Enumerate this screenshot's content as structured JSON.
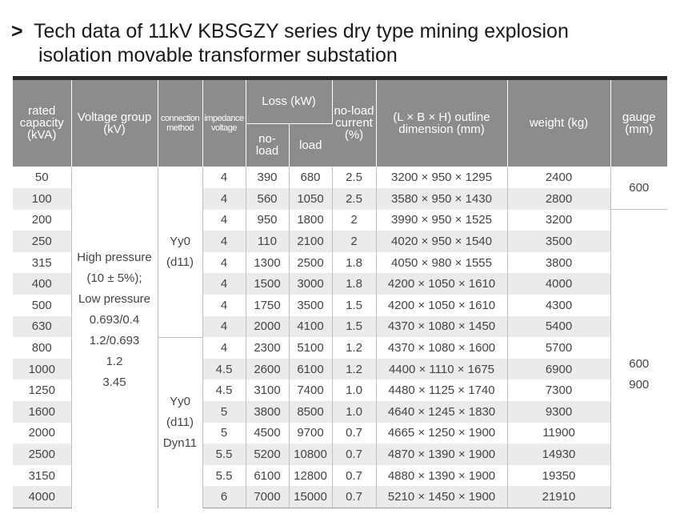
{
  "title": {
    "chevron": ">",
    "line1": "Tech data of 11kV KBSGZY series dry type mining explosion",
    "line2": "isolation movable transformer substation"
  },
  "headers": {
    "rated_capacity": "rated capacity (kVA)",
    "voltage_group": "Voltage group (kV)",
    "connection_method": "connection method",
    "impedance_voltage": "impedance voltage",
    "loss": "Loss (kW)",
    "no_load": "no- load",
    "load": "load",
    "no_load_current": "no-load current (%)",
    "outline_dimension": "(L × B × H) outline dimension (mm)",
    "weight": "weight (kg)",
    "gauge": "gauge (mm)"
  },
  "voltage_group_text": [
    "High pressure",
    "(10 ± 5%);",
    "Low pressure",
    "0.693/0.4",
    "1.2/0.693",
    "1.2",
    "3.45"
  ],
  "connection_group_1": [
    "Yy0",
    "(d11)"
  ],
  "connection_group_2": [
    "Yy0",
    "(d11)",
    "Dyn11"
  ],
  "gauge_group_1": "600",
  "gauge_group_2": [
    "600",
    "900"
  ],
  "rows": [
    {
      "capacity": "50",
      "impedance": "4",
      "no_load": "390",
      "load": "680",
      "current": "2.5",
      "dimension": "3200 × 950 × 1295",
      "weight": "2400"
    },
    {
      "capacity": "100",
      "impedance": "4",
      "no_load": "560",
      "load": "1050",
      "current": "2.5",
      "dimension": "3580 × 950 × 1430",
      "weight": "2800"
    },
    {
      "capacity": "200",
      "impedance": "4",
      "no_load": "950",
      "load": "1800",
      "current": "2",
      "dimension": "3990 × 950 × 1525",
      "weight": "3200"
    },
    {
      "capacity": "250",
      "impedance": "4",
      "no_load": "110",
      "load": "2100",
      "current": "2",
      "dimension": "4020 × 950 × 1540",
      "weight": "3500"
    },
    {
      "capacity": "315",
      "impedance": "4",
      "no_load": "1300",
      "load": "2500",
      "current": "1.8",
      "dimension": "4050 × 980 × 1555",
      "weight": "3800"
    },
    {
      "capacity": "400",
      "impedance": "4",
      "no_load": "1500",
      "load": "3000",
      "current": "1.8",
      "dimension": "4200 × 1050 × 1610",
      "weight": "4000"
    },
    {
      "capacity": "500",
      "impedance": "4",
      "no_load": "1750",
      "load": "3500",
      "current": "1.5",
      "dimension": "4200 × 1050 × 1610",
      "weight": "4300"
    },
    {
      "capacity": "630",
      "impedance": "4",
      "no_load": "2000",
      "load": "4100",
      "current": "1.5",
      "dimension": "4370 × 1080 × 1450",
      "weight": "5400"
    },
    {
      "capacity": "800",
      "impedance": "4",
      "no_load": "2300",
      "load": "5100",
      "current": "1.2",
      "dimension": "4370 × 1080 × 1600",
      "weight": "5700"
    },
    {
      "capacity": "1000",
      "impedance": "4.5",
      "no_load": "2600",
      "load": "6100",
      "current": "1.2",
      "dimension": "4400 × 1110 × 1675",
      "weight": "6900"
    },
    {
      "capacity": "1250",
      "impedance": "4.5",
      "no_load": "3100",
      "load": "7400",
      "current": "1.0",
      "dimension": "4480 × 1125 × 1740",
      "weight": "7300"
    },
    {
      "capacity": "1600",
      "impedance": "5",
      "no_load": "3800",
      "load": "8500",
      "current": "1.0",
      "dimension": "4640 × 1245 × 1830",
      "weight": "9300"
    },
    {
      "capacity": "2000",
      "impedance": "5",
      "no_load": "4500",
      "load": "9700",
      "current": "0.7",
      "dimension": "4665 × 1250 × 1900",
      "weight": "11900"
    },
    {
      "capacity": "2500",
      "impedance": "5.5",
      "no_load": "5200",
      "load": "10800",
      "current": "0.7",
      "dimension": "4870 × 1390 × 1900",
      "weight": "14930"
    },
    {
      "capacity": "3150",
      "impedance": "5.5",
      "no_load": "6100",
      "load": "12800",
      "current": "0.7",
      "dimension": "4880 × 1390 × 1900",
      "weight": "19350"
    },
    {
      "capacity": "4000",
      "impedance": "6",
      "no_load": "7000",
      "load": "15000",
      "current": "0.7",
      "dimension": "5210 × 1450 × 1900",
      "weight": "21910"
    }
  ]
}
